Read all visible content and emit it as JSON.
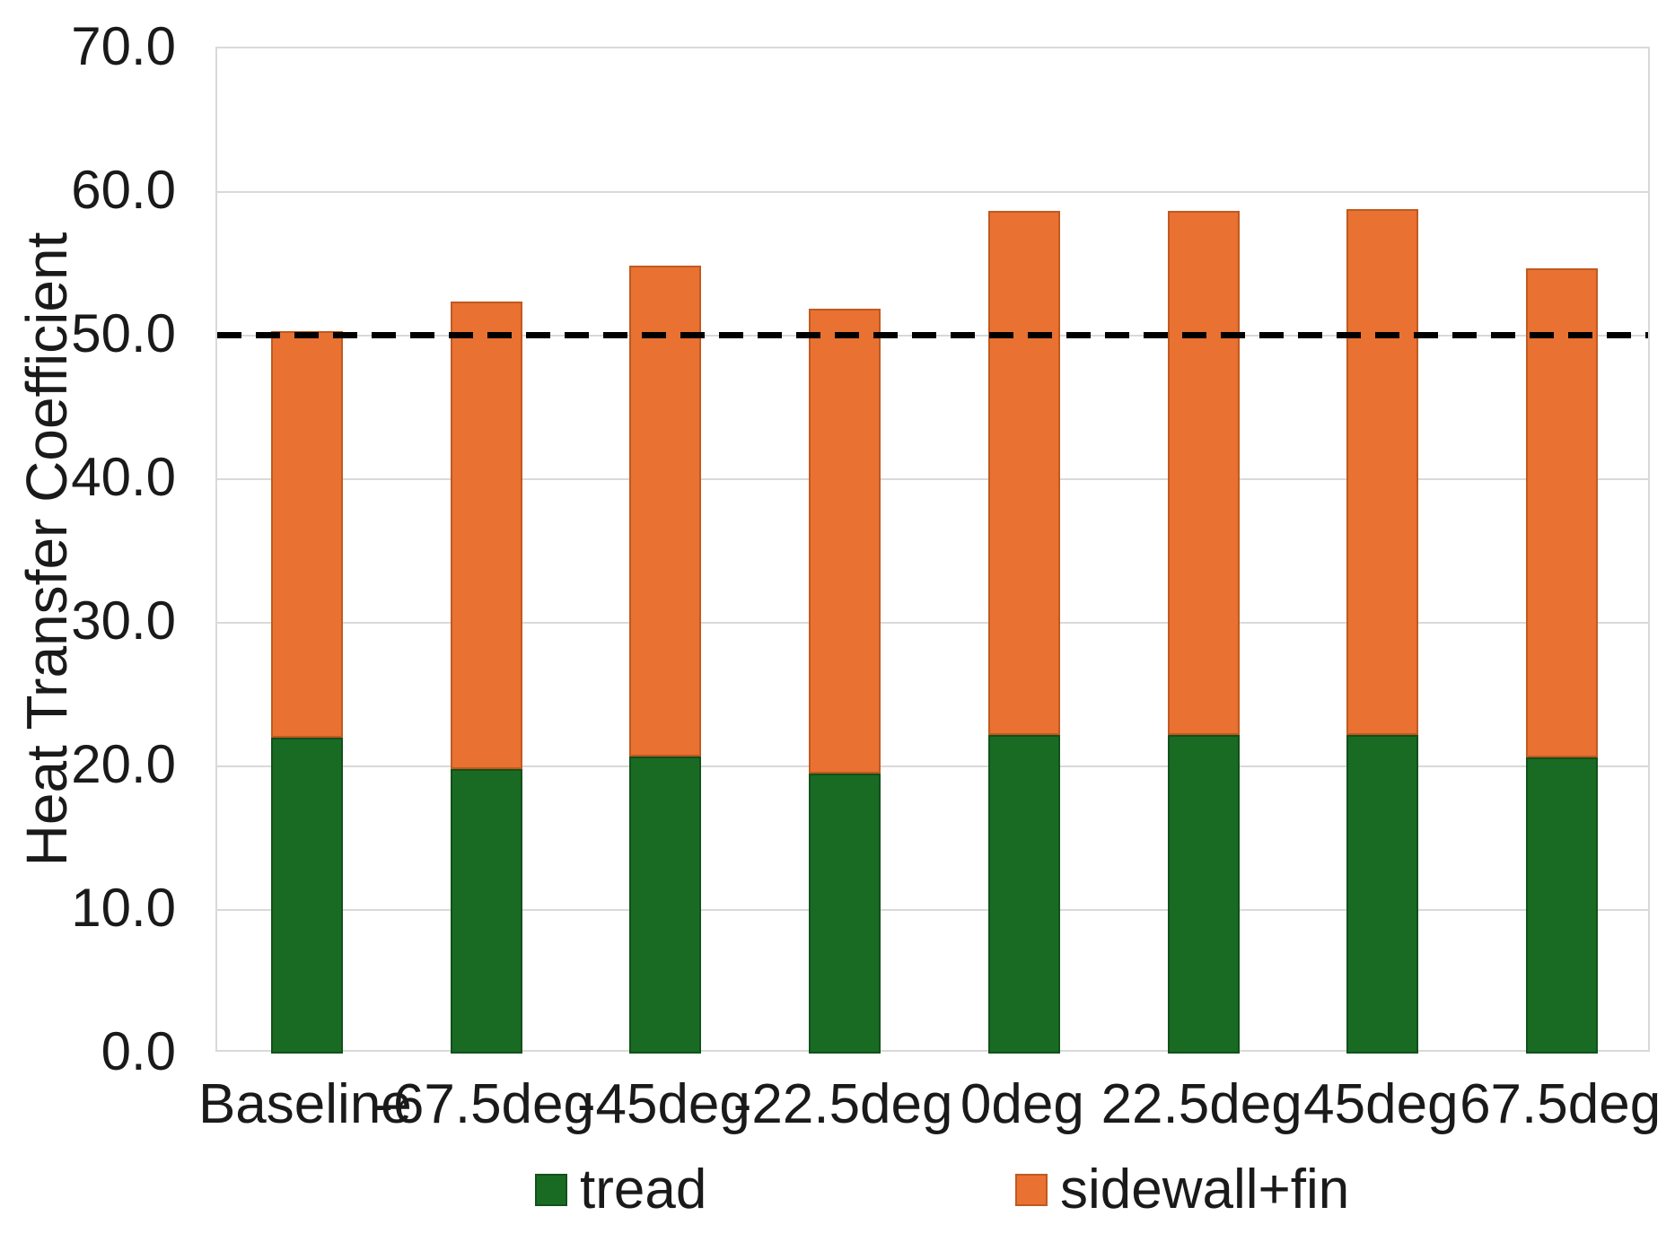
{
  "chart_data": {
    "type": "bar",
    "stacked": true,
    "title": "",
    "ylabel": "Heat Transfer Coefficient",
    "xlabel": "",
    "ylim": [
      0,
      70
    ],
    "ytick_step": 10,
    "ytick_decimals": 1,
    "grid": true,
    "legend_position": "bottom",
    "categories": [
      "Baseline",
      "-67.5deg",
      "-45deg",
      "-22.5deg",
      "0deg",
      "22.5deg",
      "45deg",
      "67.5deg"
    ],
    "series": [
      {
        "name": "tread",
        "color": "#196B24",
        "border_color": "#12511B",
        "values": [
          22.0,
          19.8,
          20.7,
          19.5,
          22.2,
          22.2,
          22.2,
          20.6
        ]
      },
      {
        "name": "sidewall+fin",
        "color": "#E97132",
        "border_color": "#C05A20",
        "values": [
          28.3,
          32.6,
          34.2,
          32.4,
          36.5,
          36.5,
          36.6,
          34.1
        ]
      }
    ],
    "stack_totals": [
      50.3,
      52.4,
      54.9,
      51.9,
      58.7,
      58.7,
      58.8,
      54.7
    ],
    "reference_line": {
      "value": 50.0,
      "style": "dashed",
      "color": "#000000"
    }
  },
  "colors": {
    "tread": "#196B24",
    "sidewall_fin": "#E97132",
    "gridline": "#D9D9D9",
    "reference_line": "#000000",
    "text": "#1A1A1A",
    "background": "#FFFFFF"
  }
}
